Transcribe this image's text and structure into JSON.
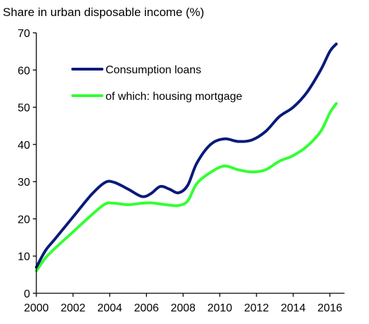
{
  "chart_data": {
    "type": "line",
    "title": "",
    "unit_label": "Share in urban disposable income (%)",
    "xlabel": "",
    "ylabel": "",
    "xlim": [
      2000,
      2016.5
    ],
    "ylim": [
      0,
      70
    ],
    "x_ticks": [
      "2000",
      "2002",
      "2004",
      "2006",
      "2008",
      "2010",
      "2012",
      "2014",
      "2016"
    ],
    "y_ticks": [
      "0",
      "10",
      "20",
      "30",
      "40",
      "50",
      "60",
      "70"
    ],
    "grid": false,
    "legend_position": "top-left (inside)",
    "series": [
      {
        "name": "Consumption loans",
        "color": "#0a1a7a",
        "points": [
          [
            2000,
            7
          ],
          [
            2000.5,
            11.5
          ],
          [
            2001,
            14.5
          ],
          [
            2002,
            20.5
          ],
          [
            2003,
            26.5
          ],
          [
            2003.75,
            29.8
          ],
          [
            2004.25,
            29.8
          ],
          [
            2005,
            28
          ],
          [
            2005.75,
            26
          ],
          [
            2006.25,
            26.8
          ],
          [
            2006.75,
            28.7
          ],
          [
            2007.25,
            28
          ],
          [
            2007.75,
            27
          ],
          [
            2008.25,
            29
          ],
          [
            2008.75,
            35
          ],
          [
            2009.5,
            40
          ],
          [
            2010.25,
            41.5
          ],
          [
            2011,
            40.8
          ],
          [
            2011.75,
            41.2
          ],
          [
            2012.5,
            43.5
          ],
          [
            2013.25,
            47.5
          ],
          [
            2014,
            50
          ],
          [
            2014.75,
            54
          ],
          [
            2015.5,
            60
          ],
          [
            2016,
            65
          ],
          [
            2016.35,
            67
          ]
        ]
      },
      {
        "name": "of which: housing mortgage",
        "color": "#33ff33",
        "points": [
          [
            2000,
            6
          ],
          [
            2000.5,
            9.5
          ],
          [
            2001,
            12
          ],
          [
            2002,
            16.5
          ],
          [
            2003,
            21
          ],
          [
            2003.75,
            24
          ],
          [
            2004.25,
            24.2
          ],
          [
            2005,
            23.8
          ],
          [
            2005.75,
            24.2
          ],
          [
            2006.25,
            24.3
          ],
          [
            2006.75,
            24
          ],
          [
            2007.25,
            23.7
          ],
          [
            2007.75,
            23.6
          ],
          [
            2008.25,
            24.8
          ],
          [
            2008.75,
            29.5
          ],
          [
            2009.5,
            32.5
          ],
          [
            2010.25,
            34.2
          ],
          [
            2011,
            33.2
          ],
          [
            2011.75,
            32.6
          ],
          [
            2012.5,
            33.2
          ],
          [
            2013.25,
            35.5
          ],
          [
            2014,
            37
          ],
          [
            2014.75,
            39.5
          ],
          [
            2015.5,
            43.5
          ],
          [
            2016,
            48.5
          ],
          [
            2016.35,
            51
          ]
        ]
      }
    ]
  }
}
